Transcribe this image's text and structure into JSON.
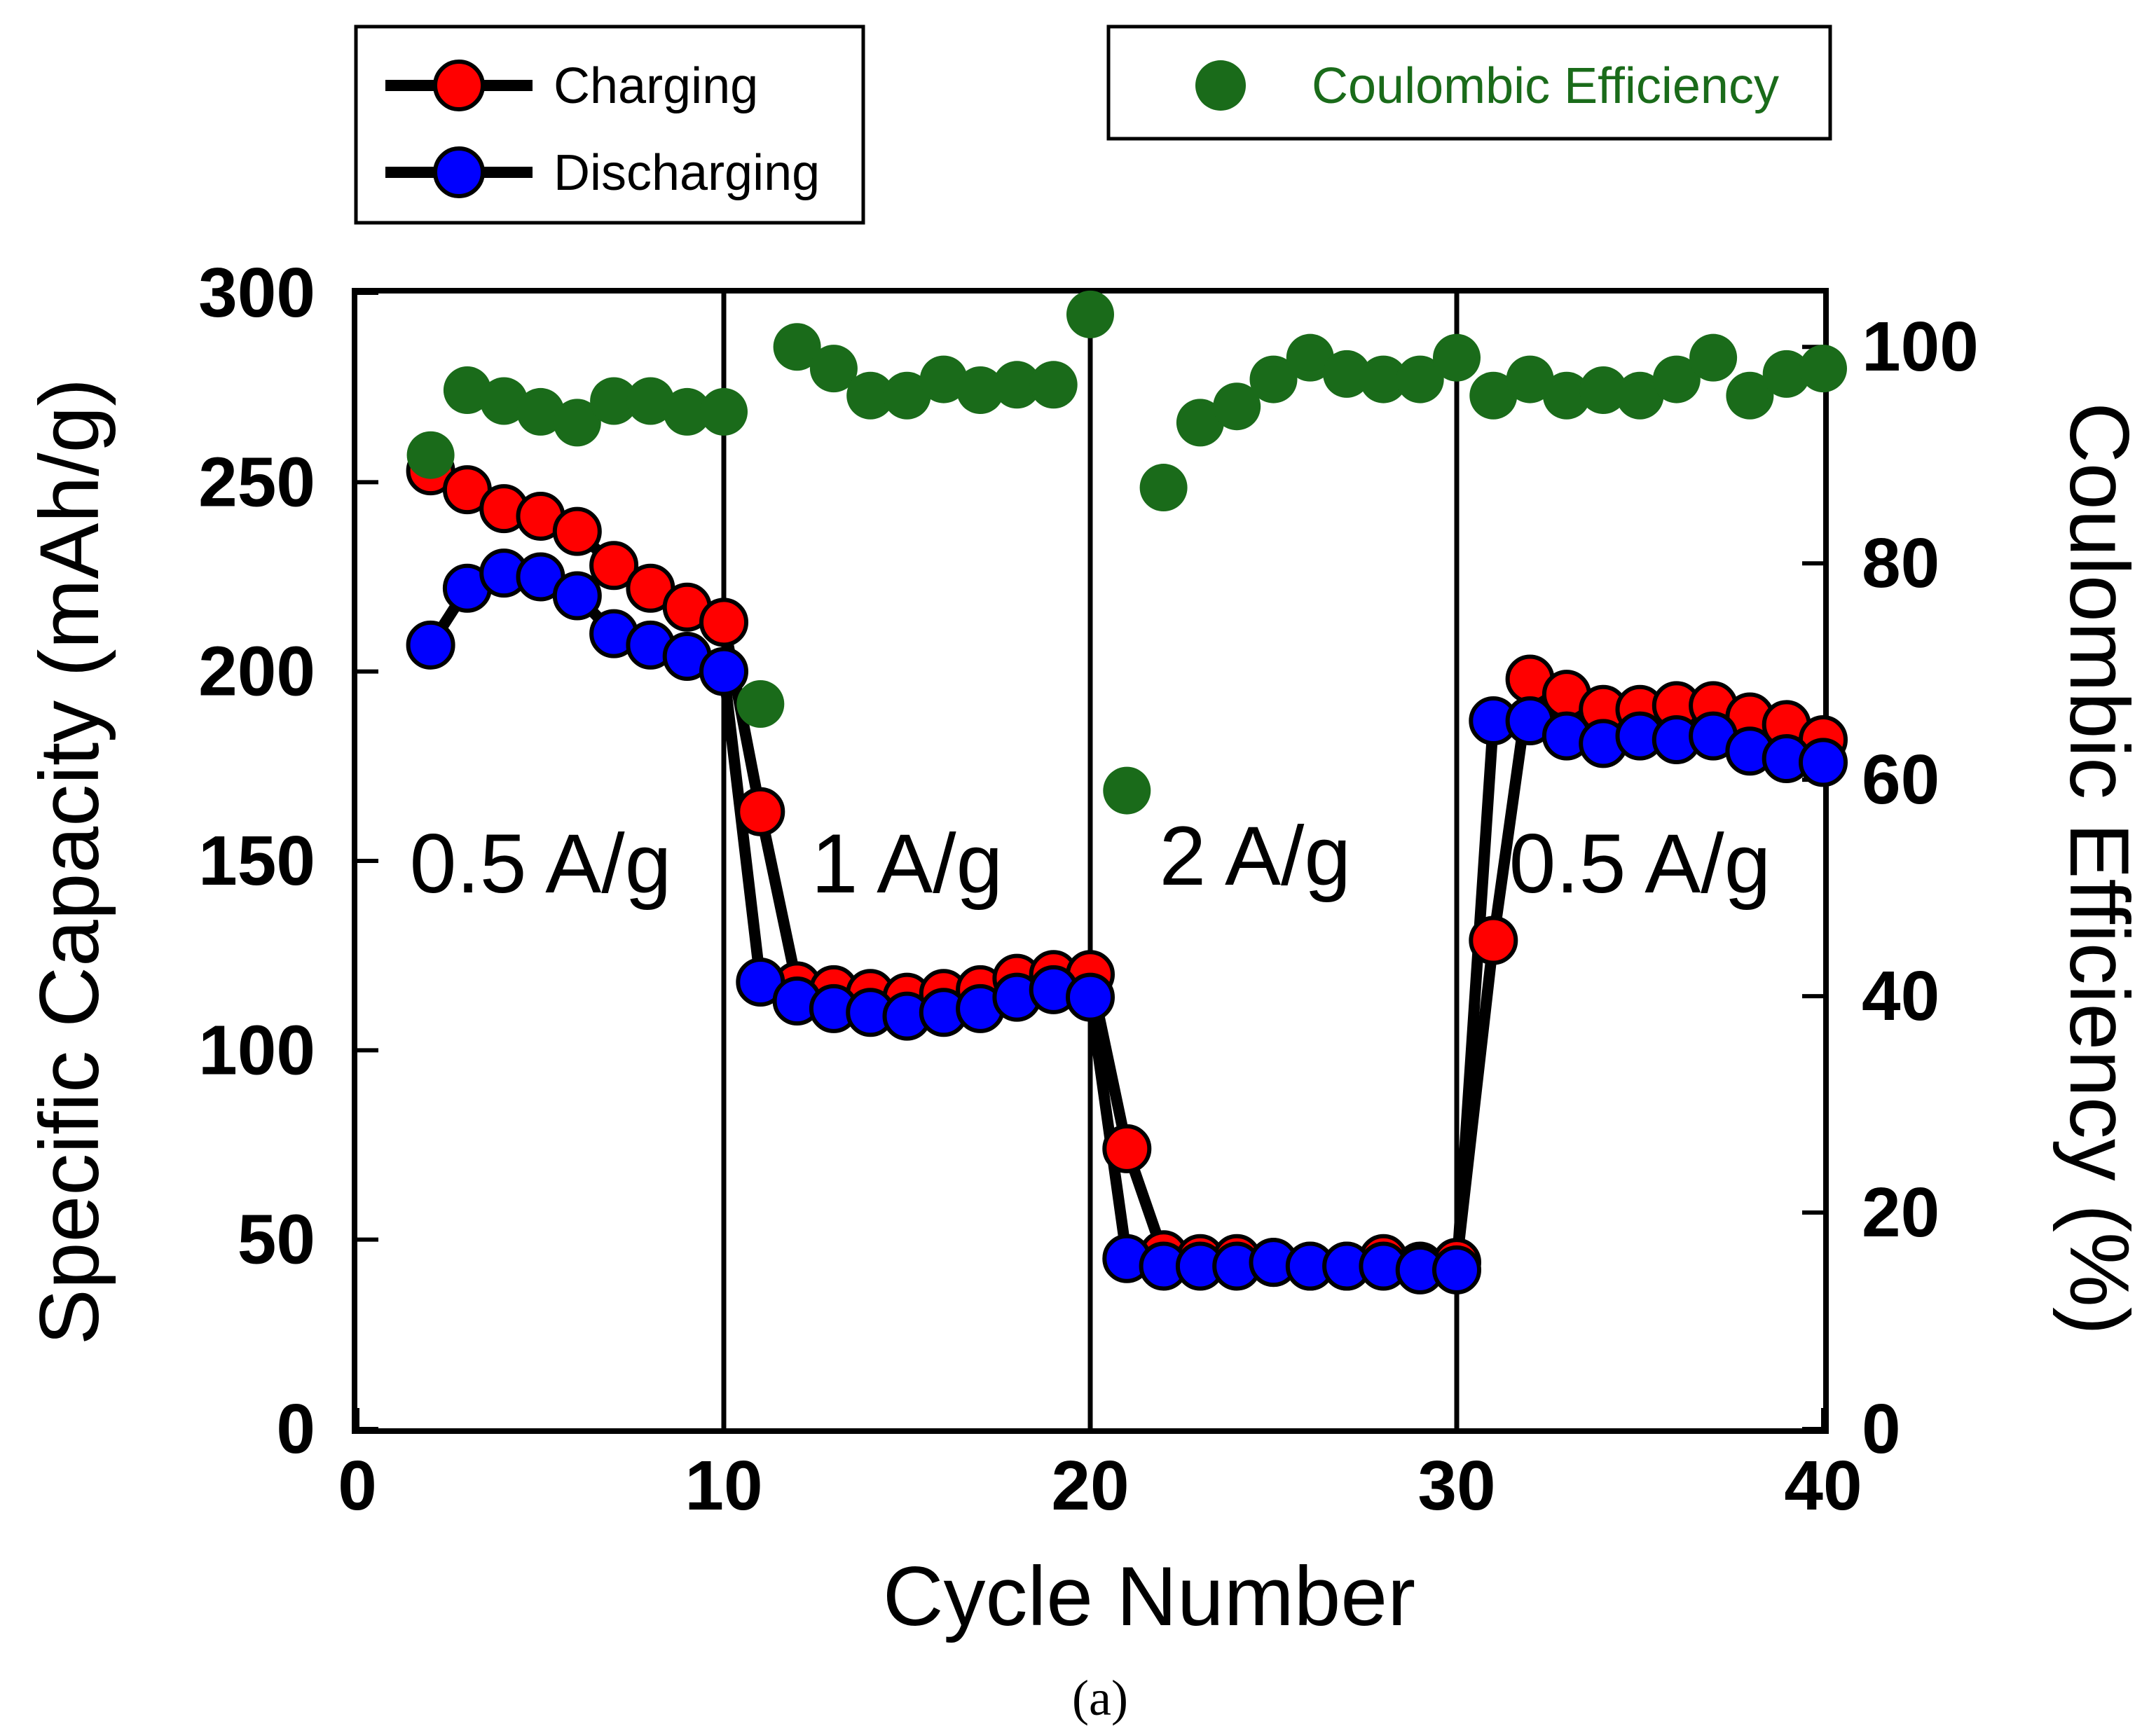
{
  "chart_data": {
    "type": "scatter",
    "xlabel": "Cycle Number",
    "ylabel": "Specific Capacity (mAh/g)",
    "y2label": "Coulombic Efficiency (%)",
    "xlim": [
      0,
      40
    ],
    "ylim": [
      0,
      300
    ],
    "y2lim": [
      0,
      105
    ],
    "x_ticks": [
      0,
      10,
      20,
      30,
      40
    ],
    "y_ticks": [
      0,
      50,
      100,
      150,
      200,
      250,
      300
    ],
    "y2_ticks": [
      0,
      20,
      40,
      60,
      80,
      100
    ],
    "rate_dividers": [
      10,
      20,
      30
    ],
    "rate_labels": [
      {
        "text": "0.5 A/g",
        "x": 5,
        "y": 150
      },
      {
        "text": "1 A/g",
        "x": 15,
        "y": 150
      },
      {
        "text": "2 A/g",
        "x": 24.5,
        "y": 152
      },
      {
        "text": "0.5 A/g",
        "x": 35,
        "y": 150
      }
    ],
    "series": [
      {
        "name": "Charging",
        "color": "#ff0000",
        "line": true,
        "x": [
          2,
          3,
          4,
          5,
          6,
          7,
          8,
          9,
          10,
          11,
          12,
          13,
          14,
          15,
          16,
          17,
          18,
          19,
          20,
          21,
          22,
          23,
          24,
          25,
          26,
          27,
          28,
          29,
          30,
          31,
          32,
          33,
          34,
          35,
          36,
          37,
          38,
          39,
          40
        ],
        "values": [
          253,
          248,
          243,
          241,
          237,
          228,
          222,
          217,
          213,
          163,
          117,
          116,
          115,
          114,
          115,
          116,
          119,
          120,
          120,
          74,
          46,
          45,
          45,
          44,
          43,
          43,
          45,
          43,
          44,
          129,
          198,
          194,
          190,
          190,
          191,
          191,
          188,
          186,
          182
        ]
      },
      {
        "name": "Discharging",
        "color": "#0000ff",
        "line": true,
        "x": [
          2,
          3,
          4,
          5,
          6,
          7,
          8,
          9,
          10,
          11,
          12,
          13,
          14,
          15,
          16,
          17,
          18,
          19,
          20,
          21,
          22,
          23,
          24,
          25,
          26,
          27,
          28,
          29,
          30,
          31,
          32,
          33,
          34,
          35,
          36,
          37,
          38,
          39,
          40
        ],
        "values": [
          207,
          222,
          226,
          225,
          220,
          210,
          207,
          204,
          200,
          118,
          113,
          111,
          110,
          109,
          110,
          111,
          114,
          116,
          114,
          45,
          43,
          43,
          43,
          44,
          43,
          43,
          43,
          42,
          42,
          187,
          187,
          183,
          181,
          183,
          182,
          183,
          179,
          177,
          176
        ]
      },
      {
        "name": "Coulombic Efficiency",
        "color": "#1a6b1a",
        "axis": "right",
        "line": false,
        "x": [
          2,
          3,
          4,
          5,
          6,
          7,
          8,
          9,
          10,
          11,
          12,
          13,
          14,
          15,
          16,
          17,
          18,
          19,
          20,
          21,
          22,
          23,
          24,
          25,
          26,
          27,
          28,
          29,
          30,
          31,
          32,
          33,
          34,
          35,
          36,
          37,
          38,
          39,
          40
        ],
        "values": [
          90,
          96,
          95,
          94,
          93,
          95,
          95,
          94,
          94,
          67,
          100,
          98,
          95.5,
          95.5,
          97,
          96,
          96.5,
          96.5,
          103,
          59,
          87,
          93,
          94.5,
          97,
          99,
          97.5,
          97,
          97,
          99,
          95.5,
          97,
          95.5,
          96,
          95.5,
          97,
          99,
          95.5,
          97.5,
          98
        ]
      }
    ]
  },
  "legend_left": {
    "items": [
      {
        "label": "Charging",
        "color": "#ff0000"
      },
      {
        "label": "Discharging",
        "color": "#0000ff"
      }
    ]
  },
  "legend_right": {
    "label": "Coulombic Efficiency",
    "color": "#1a6b1a"
  },
  "caption": "(a)"
}
